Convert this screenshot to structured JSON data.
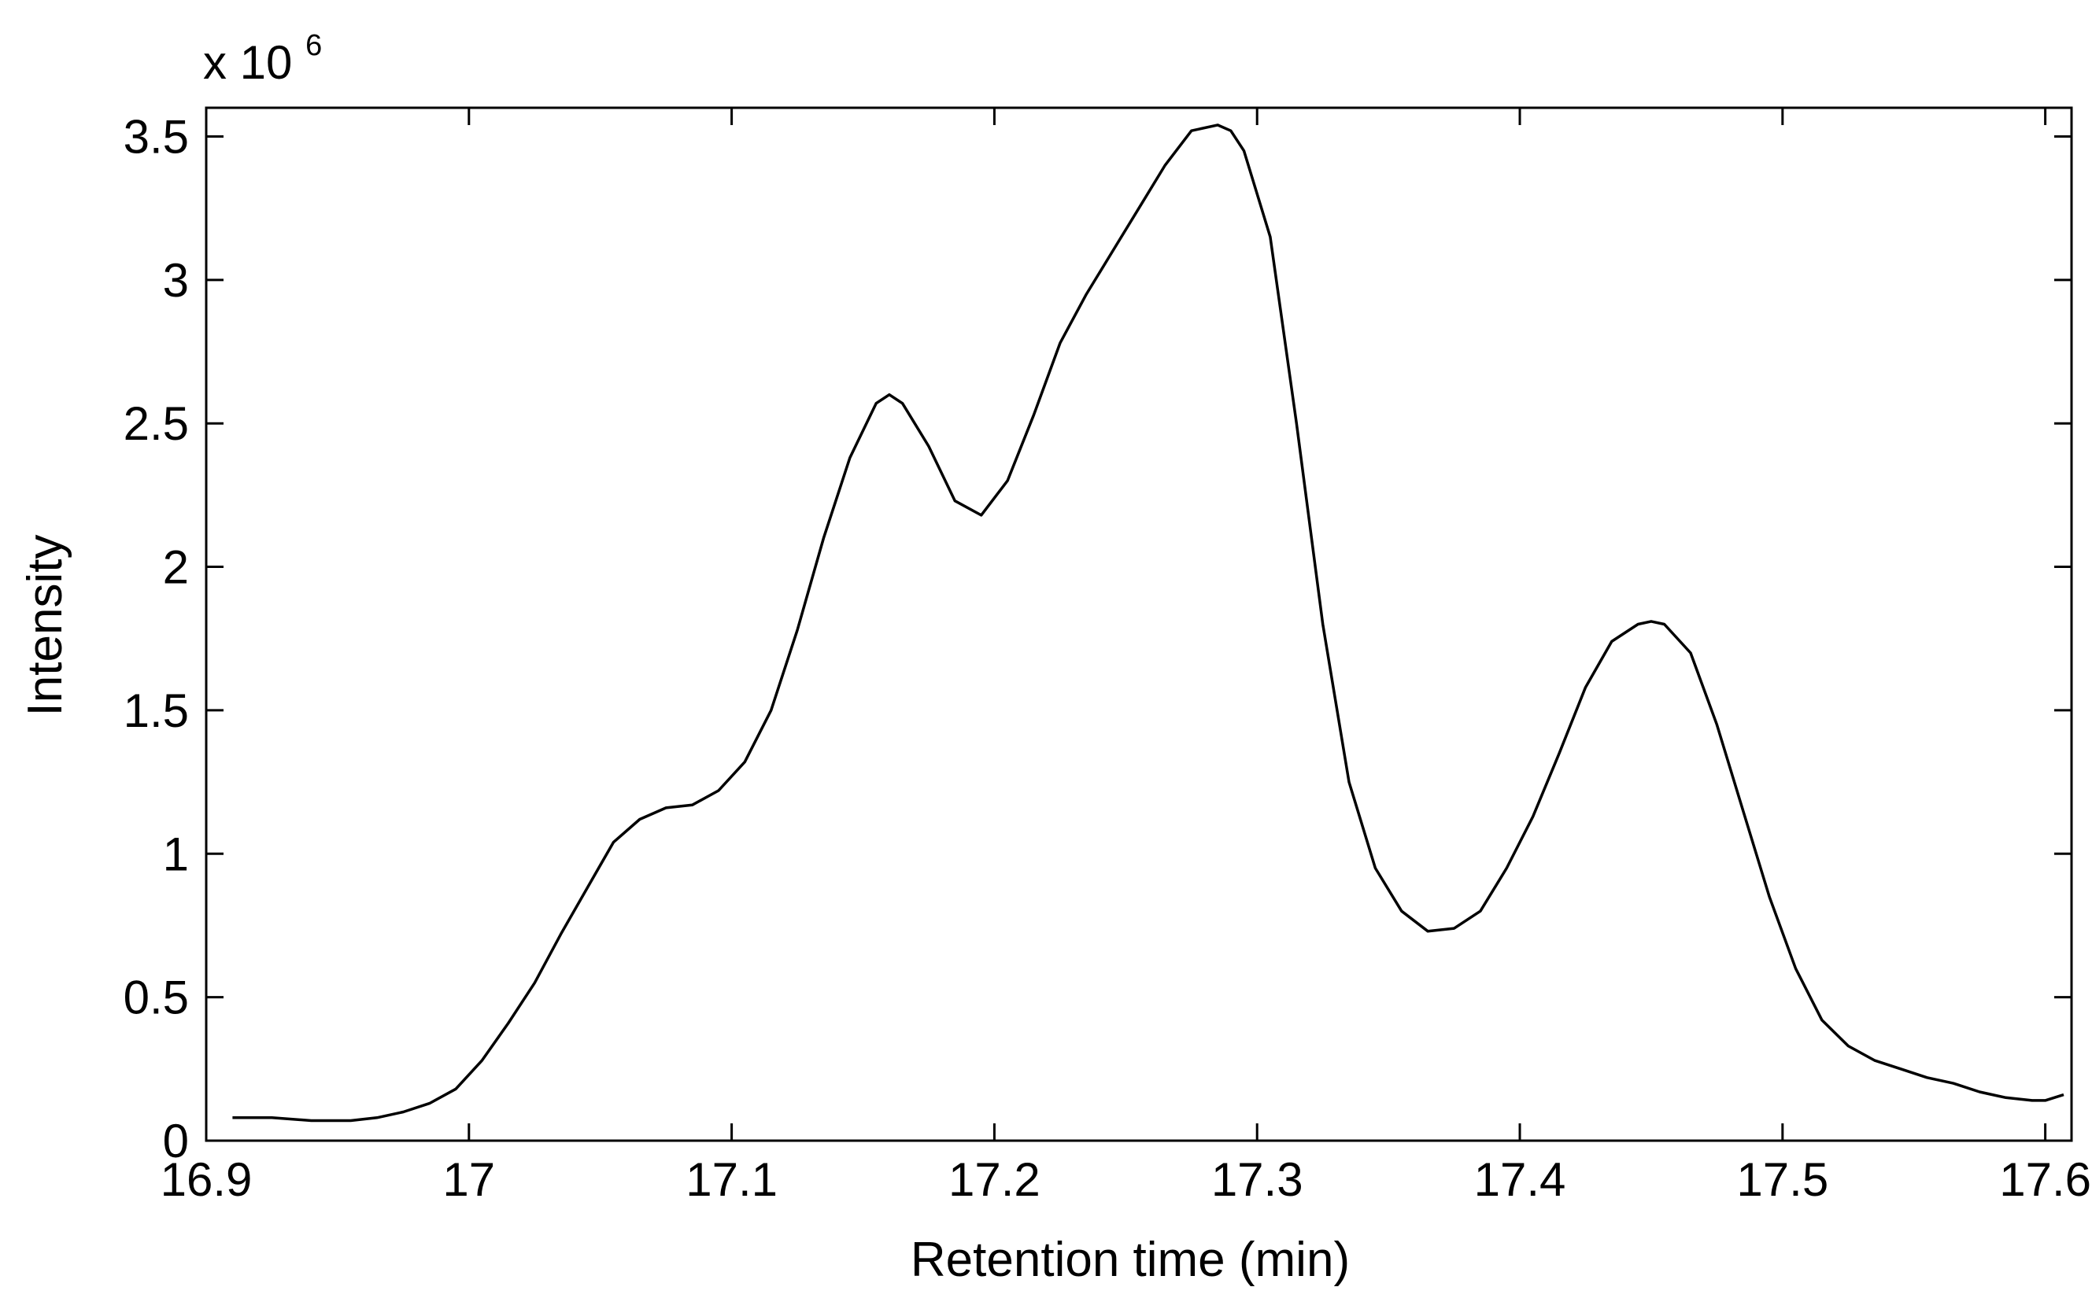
{
  "chart_data": {
    "type": "line",
    "title": "",
    "xlabel": "Retention time (min)",
    "ylabel": "Intensity",
    "y_multiplier": {
      "prefix": "x 10",
      "exponent": "6"
    },
    "xlim": [
      16.9,
      17.61
    ],
    "ylim": [
      0,
      3.6
    ],
    "x_ticks": [
      {
        "value": 16.9,
        "label": "16.9"
      },
      {
        "value": 17.0,
        "label": "17"
      },
      {
        "value": 17.1,
        "label": "17.1"
      },
      {
        "value": 17.2,
        "label": "17.2"
      },
      {
        "value": 17.3,
        "label": "17.3"
      },
      {
        "value": 17.4,
        "label": "17.4"
      },
      {
        "value": 17.5,
        "label": "17.5"
      },
      {
        "value": 17.6,
        "label": "17.6"
      }
    ],
    "y_ticks": [
      {
        "value": 0,
        "label": "0"
      },
      {
        "value": 0.5,
        "label": "0.5"
      },
      {
        "value": 1.0,
        "label": "1"
      },
      {
        "value": 1.5,
        "label": "1.5"
      },
      {
        "value": 2.0,
        "label": "2"
      },
      {
        "value": 2.5,
        "label": "2.5"
      },
      {
        "value": 3.0,
        "label": "3"
      },
      {
        "value": 3.5,
        "label": "3.5"
      }
    ],
    "grid": false,
    "series": [
      {
        "color": "#000000",
        "x": [
          16.91,
          16.925,
          16.94,
          16.955,
          16.965,
          16.975,
          16.985,
          16.995,
          17.005,
          17.015,
          17.025,
          17.035,
          17.045,
          17.055,
          17.065,
          17.075,
          17.085,
          17.095,
          17.105,
          17.115,
          17.125,
          17.135,
          17.145,
          17.155,
          17.16,
          17.165,
          17.175,
          17.185,
          17.195,
          17.205,
          17.215,
          17.225,
          17.235,
          17.245,
          17.255,
          17.265,
          17.275,
          17.285,
          17.29,
          17.295,
          17.305,
          17.315,
          17.325,
          17.335,
          17.345,
          17.355,
          17.365,
          17.375,
          17.385,
          17.395,
          17.405,
          17.415,
          17.425,
          17.435,
          17.445,
          17.45,
          17.455,
          17.465,
          17.475,
          17.485,
          17.495,
          17.505,
          17.515,
          17.525,
          17.535,
          17.545,
          17.555,
          17.565,
          17.575,
          17.585,
          17.595,
          17.6,
          17.607
        ],
        "y": [
          0.08,
          0.08,
          0.07,
          0.07,
          0.08,
          0.1,
          0.13,
          0.18,
          0.28,
          0.41,
          0.55,
          0.72,
          0.88,
          1.04,
          1.12,
          1.16,
          1.17,
          1.22,
          1.32,
          1.5,
          1.78,
          2.1,
          2.38,
          2.57,
          2.6,
          2.57,
          2.42,
          2.23,
          2.18,
          2.3,
          2.53,
          2.78,
          2.95,
          3.1,
          3.25,
          3.4,
          3.52,
          3.54,
          3.52,
          3.45,
          3.15,
          2.5,
          1.8,
          1.25,
          0.95,
          0.8,
          0.73,
          0.74,
          0.8,
          0.95,
          1.13,
          1.35,
          1.58,
          1.74,
          1.8,
          1.81,
          1.8,
          1.7,
          1.45,
          1.15,
          0.85,
          0.6,
          0.42,
          0.33,
          0.28,
          0.25,
          0.22,
          0.2,
          0.17,
          0.15,
          0.14,
          0.14,
          0.16
        ]
      }
    ]
  }
}
